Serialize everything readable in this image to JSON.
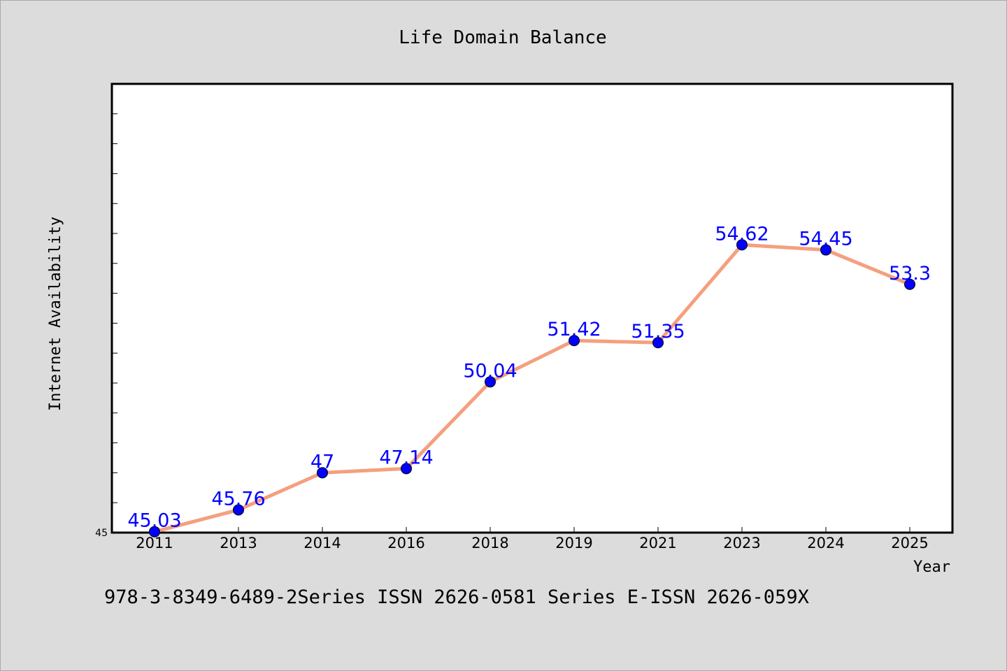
{
  "chart_data": {
    "type": "line",
    "title": "Life Domain Balance",
    "xlabel": "Year",
    "ylabel": "Internet Availability",
    "categories": [
      "2011",
      "2013",
      "2014",
      "2016",
      "2018",
      "2019",
      "2021",
      "2023",
      "2024",
      "2025"
    ],
    "series": [
      {
        "values": [
          45.03,
          45.76,
          47,
          47.14,
          50.04,
          51.42,
          51.35,
          54.62,
          54.45,
          53.3
        ]
      }
    ],
    "data_labels": [
      "45.03",
      "45.76",
      "47",
      "47.14",
      "50.04",
      "51.42",
      "51.35",
      "54.62",
      "54.45",
      "53.3"
    ],
    "ylim": [
      45,
      60
    ],
    "y_tick_labels": [
      "45"
    ],
    "grid": false,
    "line_color": "#f4a07e",
    "marker_color": "#0000ff",
    "label_color": "#0000ff"
  },
  "footer": {
    "text": "978-3-8349-6489-2Series ISSN 2626-0581 Series E-ISSN 2626-059X"
  }
}
